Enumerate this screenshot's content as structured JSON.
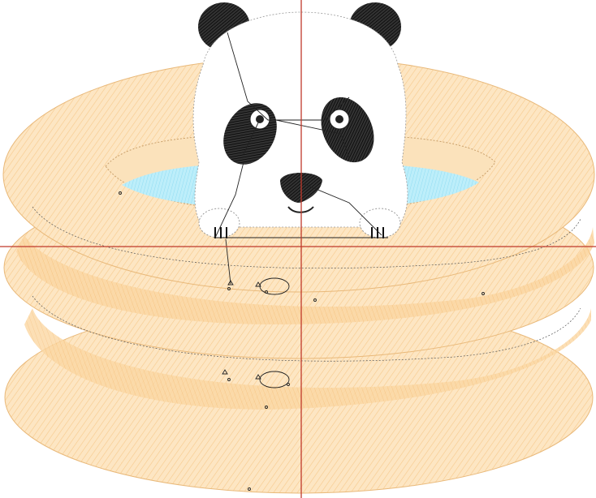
{
  "design": {
    "subject": "panda-in-paddling-pool",
    "colors": {
      "pool_fill": "#fde6c3",
      "pool_stitch": "#f7c98b",
      "pool_shade": "#fbd7a3",
      "water": "#a9e8f7",
      "panda_white": "#ffffff",
      "panda_black": "#1a1a1a",
      "guide_line": "#c0392b",
      "connector": "#222222"
    },
    "icons": [
      "crosshair-guide",
      "start-marker",
      "end-marker",
      "stitch-point"
    ]
  }
}
